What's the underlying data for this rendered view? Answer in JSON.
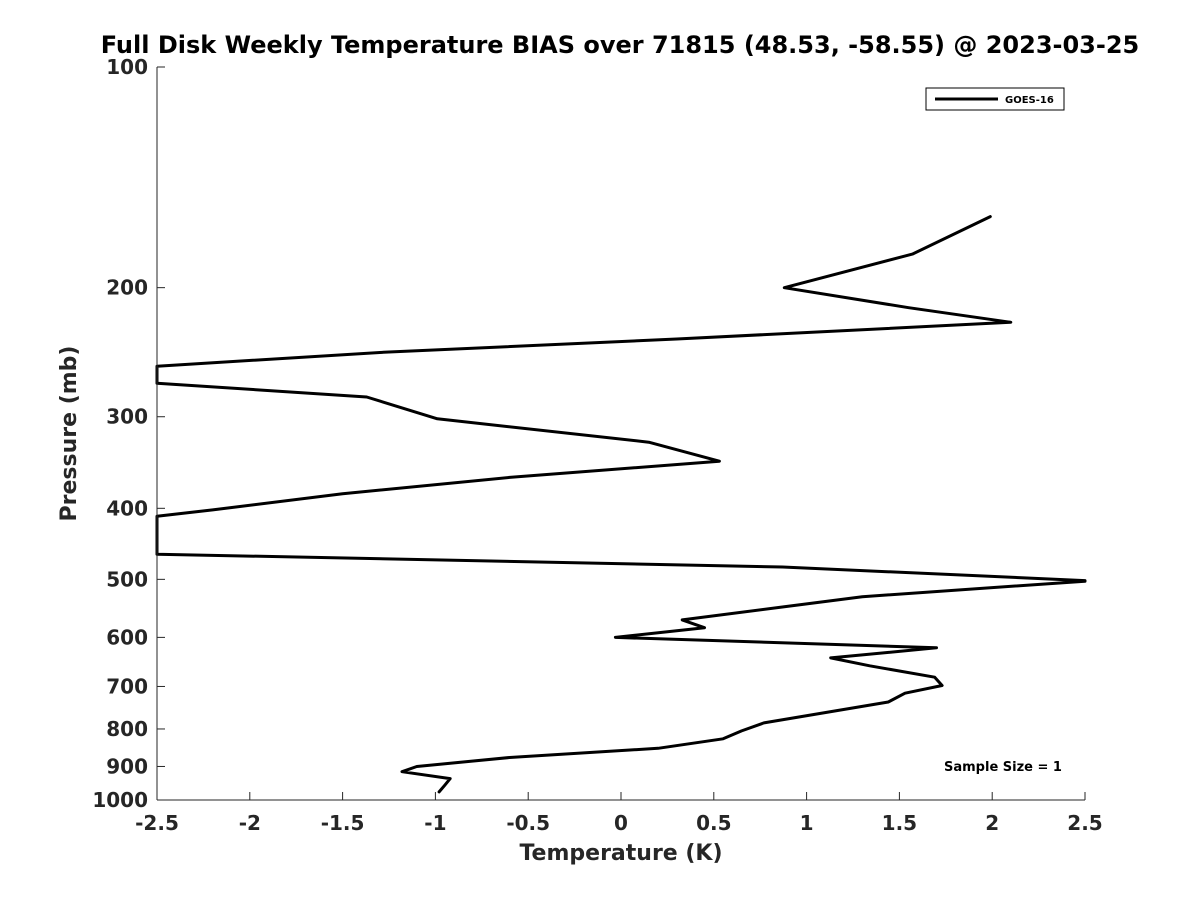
{
  "chart_data": {
    "type": "line",
    "title": "Full Disk Weekly Temperature BIAS over 71815 (48.53, -58.55) @ 2023-03-25",
    "xlabel": "Temperature (K)",
    "ylabel": "Pressure (mb)",
    "xlim": [
      -2.5,
      2.5
    ],
    "ylim": [
      1000,
      100
    ],
    "yscale": "log",
    "xticks": [
      -2.5,
      -2,
      -1.5,
      -1,
      -0.5,
      0,
      0.5,
      1,
      1.5,
      2,
      2.5
    ],
    "xtick_labels": [
      "-2.5",
      "-2",
      "-1.5",
      "-1",
      "-0.5",
      "0",
      "0.5",
      "1",
      "1.5",
      "2",
      "2.5"
    ],
    "yticks": [
      100,
      200,
      300,
      400,
      500,
      600,
      700,
      800,
      900,
      1000
    ],
    "ytick_labels": [
      "100",
      "200",
      "300",
      "400",
      "500",
      "600",
      "700",
      "800",
      "900",
      "1000"
    ],
    "grid": false,
    "legend_position": "top-right",
    "annotation": "Sample Size = 1",
    "series": [
      {
        "name": "GOES-16",
        "color": "#000000",
        "points": [
          {
            "t": 1.99,
            "p": 160
          },
          {
            "t": 1.57,
            "p": 180
          },
          {
            "t": 0.88,
            "p": 200
          },
          {
            "t": 1.55,
            "p": 213
          },
          {
            "t": 2.1,
            "p": 223
          },
          {
            "t": 0.3,
            "p": 235
          },
          {
            "t": -1.28,
            "p": 245
          },
          {
            "t": -2.5,
            "p": 256
          },
          {
            "t": -2.5,
            "p": 270
          },
          {
            "t": -1.37,
            "p": 282
          },
          {
            "t": -0.99,
            "p": 302
          },
          {
            "t": 0.15,
            "p": 325
          },
          {
            "t": 0.53,
            "p": 345
          },
          {
            "t": -0.6,
            "p": 363
          },
          {
            "t": -1.5,
            "p": 382
          },
          {
            "t": -2.2,
            "p": 402
          },
          {
            "t": -2.5,
            "p": 410
          },
          {
            "t": -2.5,
            "p": 462
          },
          {
            "t": 0.87,
            "p": 481
          },
          {
            "t": 2.5,
            "p": 502
          },
          {
            "t": 2.5,
            "p": 503
          },
          {
            "t": 1.3,
            "p": 528
          },
          {
            "t": 0.88,
            "p": 545
          },
          {
            "t": 0.33,
            "p": 568
          },
          {
            "t": 0.45,
            "p": 582
          },
          {
            "t": -0.03,
            "p": 600
          },
          {
            "t": 1.7,
            "p": 620
          },
          {
            "t": 1.13,
            "p": 640
          },
          {
            "t": 1.34,
            "p": 656
          },
          {
            "t": 1.69,
            "p": 680
          },
          {
            "t": 1.73,
            "p": 698
          },
          {
            "t": 1.53,
            "p": 715
          },
          {
            "t": 1.44,
            "p": 735
          },
          {
            "t": 0.77,
            "p": 785
          },
          {
            "t": 0.65,
            "p": 805
          },
          {
            "t": 0.55,
            "p": 825
          },
          {
            "t": 0.2,
            "p": 850
          },
          {
            "t": -0.6,
            "p": 875
          },
          {
            "t": -1.1,
            "p": 900
          },
          {
            "t": -1.18,
            "p": 915
          },
          {
            "t": -0.92,
            "p": 935
          },
          {
            "t": -0.95,
            "p": 955
          },
          {
            "t": -0.98,
            "p": 975
          }
        ]
      }
    ]
  }
}
